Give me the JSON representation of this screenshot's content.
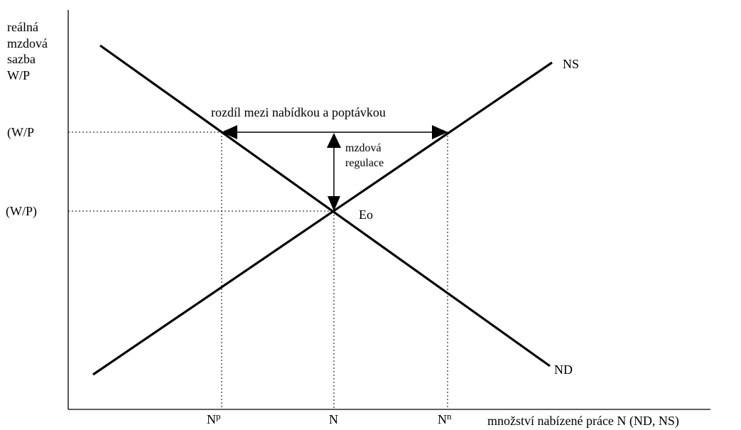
{
  "diagram": {
    "y_axis_label_lines": [
      "reálná",
      "mzdová",
      "sazba",
      "W/P"
    ],
    "x_axis_label": "množství nabízené práce N (ND, NS)",
    "y_tick_high": "(W/P",
    "y_tick_eq": "(W/P)",
    "x_tick_left_base": "N",
    "x_tick_left_sup": "p",
    "x_tick_mid": "N",
    "x_tick_right_base": "N",
    "x_tick_right_sup": "n",
    "supply_curve": "NS",
    "demand_curve": "ND",
    "equilibrium": "Eo",
    "gap_label": "rozdíl mezi nabídkou a poptávkou",
    "regulation_label_lines": [
      "mzdová",
      "regulace"
    ]
  },
  "colors": {
    "ink": "#000000",
    "background": "#ffffff"
  }
}
